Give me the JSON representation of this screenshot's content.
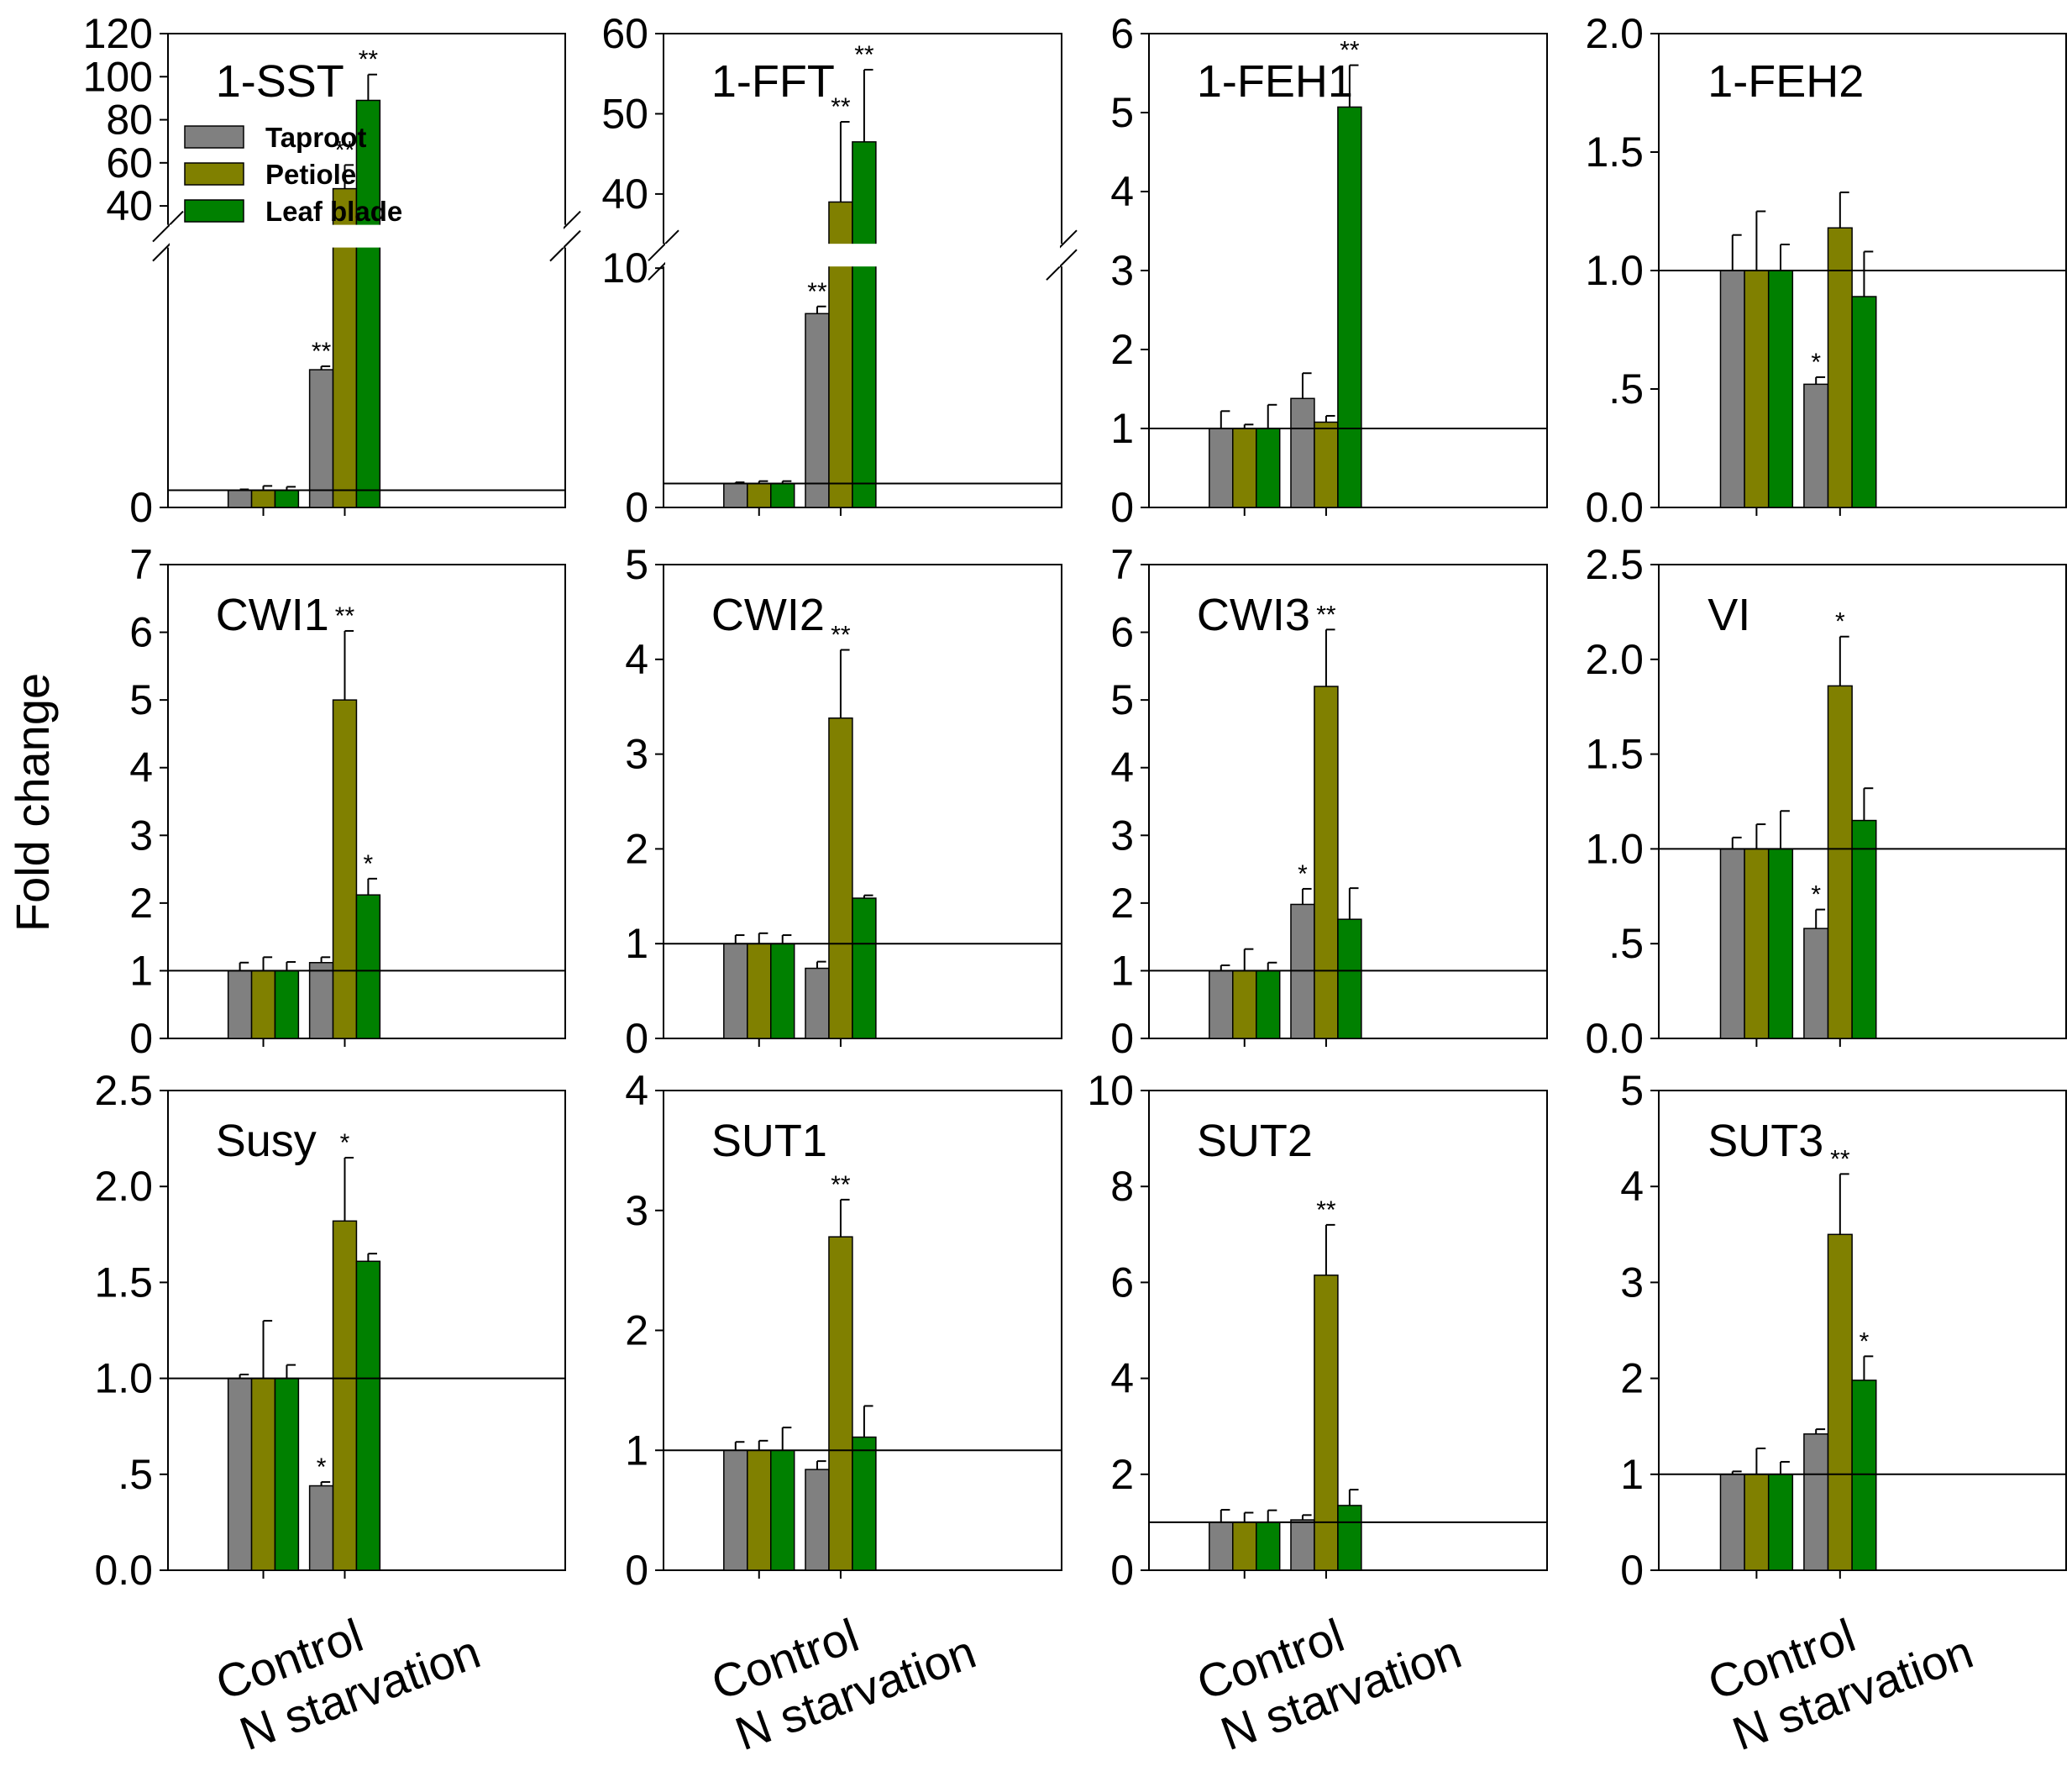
{
  "figure": {
    "ylabel": "Fold change",
    "categories": [
      "Control",
      "N starvation"
    ],
    "legend": [
      {
        "name": "Taproot",
        "color": "#808080"
      },
      {
        "name": "Petiole",
        "color": "#808000"
      },
      {
        "name": "Leaf blade",
        "color": "#008000"
      }
    ]
  },
  "chart_data": [
    {
      "type": "bar",
      "title": "1-SST",
      "ylim": [
        0,
        120
      ],
      "baseline": 1,
      "ticks": [
        "0",
        "40",
        "60",
        "80",
        "100",
        "120"
      ],
      "axis_break": {
        "lower": [
          0,
          15
        ],
        "upper": [
          32,
          120
        ],
        "lower_tick_labels": [
          "0"
        ],
        "upper_ticks": [
          40,
          60,
          80,
          100,
          120
        ]
      },
      "categories": [
        "Control",
        "N starvation"
      ],
      "series": [
        {
          "name": "Taproot",
          "values": [
            1.0,
            8.0
          ],
          "errors": [
            0.05,
            0.2
          ],
          "sig": [
            "",
            "**"
          ]
        },
        {
          "name": "Petiole",
          "values": [
            1.0,
            48
          ],
          "errors": [
            0.25,
            11
          ],
          "sig": [
            "",
            "**"
          ]
        },
        {
          "name": "Leaf blade",
          "values": [
            1.0,
            89
          ],
          "errors": [
            0.2,
            12
          ],
          "sig": [
            "",
            "**"
          ]
        }
      ]
    },
    {
      "type": "bar",
      "title": "1-FFT",
      "ylim": [
        0,
        60
      ],
      "baseline": 1,
      "ticks": [
        "0",
        "10",
        "40",
        "50",
        "60"
      ],
      "axis_break": {
        "lower": [
          0,
          10
        ],
        "upper": [
          34,
          60
        ],
        "lower_ticks": [
          0,
          10
        ],
        "upper_ticks": [
          40,
          50,
          60
        ]
      },
      "categories": [
        "Control",
        "N starvation"
      ],
      "series": [
        {
          "name": "Taproot",
          "values": [
            1.0,
            8.1
          ],
          "errors": [
            0.05,
            0.3
          ],
          "sig": [
            "",
            "**"
          ]
        },
        {
          "name": "Petiole",
          "values": [
            1.0,
            39
          ],
          "errors": [
            0.1,
            10
          ],
          "sig": [
            "",
            "**"
          ]
        },
        {
          "name": "Leaf blade",
          "values": [
            1.0,
            46.5
          ],
          "errors": [
            0.1,
            9
          ],
          "sig": [
            "",
            "**"
          ]
        }
      ]
    },
    {
      "type": "bar",
      "title": "1-FEH1",
      "ylim": [
        0,
        6
      ],
      "baseline": 1,
      "ticks": [
        "0",
        "1",
        "2",
        "3",
        "4",
        "5",
        "6"
      ],
      "categories": [
        "Control",
        "N starvation"
      ],
      "series": [
        {
          "name": "Taproot",
          "values": [
            1.0,
            1.38
          ],
          "errors": [
            0.22,
            0.32
          ],
          "sig": [
            "",
            ""
          ]
        },
        {
          "name": "Petiole",
          "values": [
            1.0,
            1.08
          ],
          "errors": [
            0.05,
            0.08
          ],
          "sig": [
            "",
            ""
          ]
        },
        {
          "name": "Leaf blade",
          "values": [
            1.0,
            5.07
          ],
          "errors": [
            0.3,
            0.53
          ],
          "sig": [
            "",
            "**"
          ]
        }
      ]
    },
    {
      "type": "bar",
      "title": "1-FEH2",
      "ylim": [
        0,
        2.0
      ],
      "baseline": 1,
      "ticks": [
        "0.0",
        ".5",
        "1.0",
        "1.5",
        "2.0"
      ],
      "categories": [
        "Control",
        "N starvation"
      ],
      "series": [
        {
          "name": "Taproot",
          "values": [
            1.0,
            0.52
          ],
          "errors": [
            0.15,
            0.03
          ],
          "sig": [
            "",
            "*"
          ]
        },
        {
          "name": "Petiole",
          "values": [
            1.0,
            1.18
          ],
          "errors": [
            0.25,
            0.15
          ],
          "sig": [
            "",
            ""
          ]
        },
        {
          "name": "Leaf blade",
          "values": [
            1.0,
            0.89
          ],
          "errors": [
            0.11,
            0.19
          ],
          "sig": [
            "",
            ""
          ]
        }
      ]
    },
    {
      "type": "bar",
      "title": "CWI1",
      "ylim": [
        0,
        7
      ],
      "baseline": 1,
      "ticks": [
        "0",
        "1",
        "2",
        "3",
        "4",
        "5",
        "6",
        "7"
      ],
      "categories": [
        "Control",
        "N starvation"
      ],
      "series": [
        {
          "name": "Taproot",
          "values": [
            1.0,
            1.12
          ],
          "errors": [
            0.12,
            0.08
          ],
          "sig": [
            "",
            ""
          ]
        },
        {
          "name": "Petiole",
          "values": [
            1.0,
            5.0
          ],
          "errors": [
            0.2,
            1.02
          ],
          "sig": [
            "",
            "**"
          ]
        },
        {
          "name": "Leaf blade",
          "values": [
            1.0,
            2.12
          ],
          "errors": [
            0.13,
            0.24
          ],
          "sig": [
            "",
            "*"
          ]
        }
      ]
    },
    {
      "type": "bar",
      "title": "CWI2",
      "ylim": [
        0,
        5
      ],
      "baseline": 1,
      "ticks": [
        "0",
        "1",
        "2",
        "3",
        "4",
        "5"
      ],
      "categories": [
        "Control",
        "N starvation"
      ],
      "series": [
        {
          "name": "Taproot",
          "values": [
            1.0,
            0.74
          ],
          "errors": [
            0.09,
            0.07
          ],
          "sig": [
            "",
            ""
          ]
        },
        {
          "name": "Petiole",
          "values": [
            1.0,
            3.38
          ],
          "errors": [
            0.11,
            0.72
          ],
          "sig": [
            "",
            "**"
          ]
        },
        {
          "name": "Leaf blade",
          "values": [
            1.0,
            1.48
          ],
          "errors": [
            0.09,
            0.03
          ],
          "sig": [
            "",
            ""
          ]
        }
      ]
    },
    {
      "type": "bar",
      "title": "CWI3",
      "ylim": [
        0,
        7
      ],
      "baseline": 1,
      "ticks": [
        "0",
        "1",
        "2",
        "3",
        "4",
        "5",
        "6",
        "7"
      ],
      "categories": [
        "Control",
        "N starvation"
      ],
      "series": [
        {
          "name": "Taproot",
          "values": [
            1.0,
            1.98
          ],
          "errors": [
            0.08,
            0.23
          ],
          "sig": [
            "",
            "*"
          ]
        },
        {
          "name": "Petiole",
          "values": [
            1.0,
            5.2
          ],
          "errors": [
            0.32,
            0.84
          ],
          "sig": [
            "",
            "**"
          ]
        },
        {
          "name": "Leaf blade",
          "values": [
            1.0,
            1.76
          ],
          "errors": [
            0.12,
            0.46
          ],
          "sig": [
            "",
            ""
          ]
        }
      ]
    },
    {
      "type": "bar",
      "title": "VI",
      "ylim": [
        0,
        2.5
      ],
      "baseline": 1,
      "ticks": [
        "0.0",
        ".5",
        "1.0",
        "1.5",
        "2.0",
        "2.5"
      ],
      "categories": [
        "Control",
        "N starvation"
      ],
      "series": [
        {
          "name": "Taproot",
          "values": [
            1.0,
            0.58
          ],
          "errors": [
            0.06,
            0.1
          ],
          "sig": [
            "",
            "*"
          ]
        },
        {
          "name": "Petiole",
          "values": [
            1.0,
            1.86
          ],
          "errors": [
            0.13,
            0.26
          ],
          "sig": [
            "",
            "*"
          ]
        },
        {
          "name": "Leaf blade",
          "values": [
            1.0,
            1.15
          ],
          "errors": [
            0.2,
            0.17
          ],
          "sig": [
            "",
            ""
          ]
        }
      ]
    },
    {
      "type": "bar",
      "title": "Susy",
      "ylim": [
        0,
        2.5
      ],
      "baseline": 1,
      "ticks": [
        "0.0",
        ".5",
        "1.0",
        "1.5",
        "2.0",
        "2.5"
      ],
      "categories": [
        "Control",
        "N starvation"
      ],
      "series": [
        {
          "name": "Taproot",
          "values": [
            1.0,
            0.44
          ],
          "errors": [
            0.02,
            0.02
          ],
          "sig": [
            "",
            "*"
          ]
        },
        {
          "name": "Petiole",
          "values": [
            1.0,
            1.82
          ],
          "errors": [
            0.3,
            0.33
          ],
          "sig": [
            "",
            "*"
          ]
        },
        {
          "name": "Leaf blade",
          "values": [
            1.0,
            1.61
          ],
          "errors": [
            0.07,
            0.04
          ],
          "sig": [
            "",
            ""
          ]
        }
      ]
    },
    {
      "type": "bar",
      "title": "SUT1",
      "ylim": [
        0,
        4
      ],
      "baseline": 1,
      "ticks": [
        "0",
        "1",
        "2",
        "3",
        "4"
      ],
      "categories": [
        "Control",
        "N starvation"
      ],
      "series": [
        {
          "name": "Taproot",
          "values": [
            1.0,
            0.84
          ],
          "errors": [
            0.07,
            0.07
          ],
          "sig": [
            "",
            ""
          ]
        },
        {
          "name": "Petiole",
          "values": [
            1.0,
            2.78
          ],
          "errors": [
            0.08,
            0.31
          ],
          "sig": [
            "",
            "**"
          ]
        },
        {
          "name": "Leaf blade",
          "values": [
            1.0,
            1.11
          ],
          "errors": [
            0.19,
            0.26
          ],
          "sig": [
            "",
            ""
          ]
        }
      ]
    },
    {
      "type": "bar",
      "title": "SUT2",
      "ylim": [
        0,
        10
      ],
      "baseline": 1,
      "ticks": [
        "0",
        "2",
        "4",
        "6",
        "8",
        "10"
      ],
      "categories": [
        "Control",
        "N starvation"
      ],
      "series": [
        {
          "name": "Taproot",
          "values": [
            1.0,
            1.05
          ],
          "errors": [
            0.26,
            0.1
          ],
          "sig": [
            "",
            ""
          ]
        },
        {
          "name": "Petiole",
          "values": [
            1.0,
            6.15
          ],
          "errors": [
            0.2,
            1.05
          ],
          "sig": [
            "",
            "**"
          ]
        },
        {
          "name": "Leaf blade",
          "values": [
            1.0,
            1.35
          ],
          "errors": [
            0.25,
            0.33
          ],
          "sig": [
            "",
            ""
          ]
        }
      ]
    },
    {
      "type": "bar",
      "title": "SUT3",
      "ylim": [
        0,
        5
      ],
      "baseline": 1,
      "ticks": [
        "0",
        "1",
        "2",
        "3",
        "4",
        "5"
      ],
      "categories": [
        "Control",
        "N starvation"
      ],
      "series": [
        {
          "name": "Taproot",
          "values": [
            1.0,
            1.42
          ],
          "errors": [
            0.03,
            0.05
          ],
          "sig": [
            "",
            ""
          ]
        },
        {
          "name": "Petiole",
          "values": [
            1.0,
            3.5
          ],
          "errors": [
            0.27,
            0.63
          ],
          "sig": [
            "",
            "**"
          ]
        },
        {
          "name": "Leaf blade",
          "values": [
            1.0,
            1.98
          ],
          "errors": [
            0.13,
            0.25
          ],
          "sig": [
            "",
            "*"
          ]
        }
      ]
    }
  ]
}
